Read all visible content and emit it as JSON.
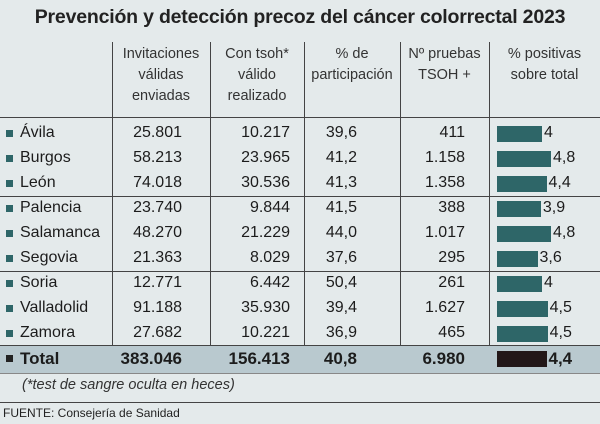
{
  "title": "Prevención y detección precoz del cáncer colorrectal 2023",
  "headers": [
    "Invitaciones válidas enviadas",
    "Con tsoh* válido realizado",
    "% de participación",
    "Nº pruebas TSOH +",
    "% positivas sobre total"
  ],
  "header_lines": [
    [
      "Invitaciones",
      "válidas",
      "enviadas"
    ],
    [
      "Con tsoh*",
      "válido",
      "realizado"
    ],
    [
      "% de",
      "participación"
    ],
    [
      "Nº pruebas",
      "TSOH +"
    ],
    [
      "% positivas",
      "sobre total"
    ]
  ],
  "colors": {
    "bar": "#2e6668",
    "total_bar": "#221718",
    "background": "#e4eaeb",
    "total_row": "#b9c9cf"
  },
  "chart_data": {
    "type": "table",
    "title": "Prevención y detección precoz del cáncer colorrectal 2023",
    "columns": [
      "Invitaciones válidas enviadas",
      "Con tsoh* válido realizado",
      "% de participación",
      "Nº pruebas TSOH +",
      "% positivas sobre total"
    ],
    "rows": [
      {
        "label": "Ávila",
        "values": [
          "25.801",
          "10.217",
          "39,6",
          "411",
          "4"
        ],
        "pct": 4
      },
      {
        "label": "Burgos",
        "values": [
          "58.213",
          "23.965",
          "41,2",
          "1.158",
          "4,8"
        ],
        "pct": 4.8
      },
      {
        "label": "León",
        "values": [
          "74.018",
          "30.536",
          "41,3",
          "1.358",
          "4,4"
        ],
        "pct": 4.4
      },
      {
        "label": "Palencia",
        "values": [
          "23.740",
          "9.844",
          "41,5",
          "388",
          "3,9"
        ],
        "pct": 3.9
      },
      {
        "label": "Salamanca",
        "values": [
          "48.270",
          "21.229",
          "44,0",
          "1.017",
          "4,8"
        ],
        "pct": 4.8
      },
      {
        "label": "Segovia",
        "values": [
          "21.363",
          "8.029",
          "37,6",
          "295",
          "3,6"
        ],
        "pct": 3.6
      },
      {
        "label": "Soria",
        "values": [
          "12.771",
          "6.442",
          "50,4",
          "261",
          "4"
        ],
        "pct": 4
      },
      {
        "label": "Valladolid",
        "values": [
          "91.188",
          "35.930",
          "39,4",
          "1.627",
          "4,5"
        ],
        "pct": 4.5
      },
      {
        "label": "Zamora",
        "values": [
          "27.682",
          "10.221",
          "36,9",
          "465",
          "4,5"
        ],
        "pct": 4.5
      }
    ],
    "total": {
      "label": "Total",
      "values": [
        "383.046",
        "156.413",
        "40,8",
        "6.980",
        "4,4"
      ],
      "pct": 4.4
    }
  },
  "footnote": "(*test de sangre oculta en heces)",
  "source": "FUENTE: Consejería de Sanidad"
}
